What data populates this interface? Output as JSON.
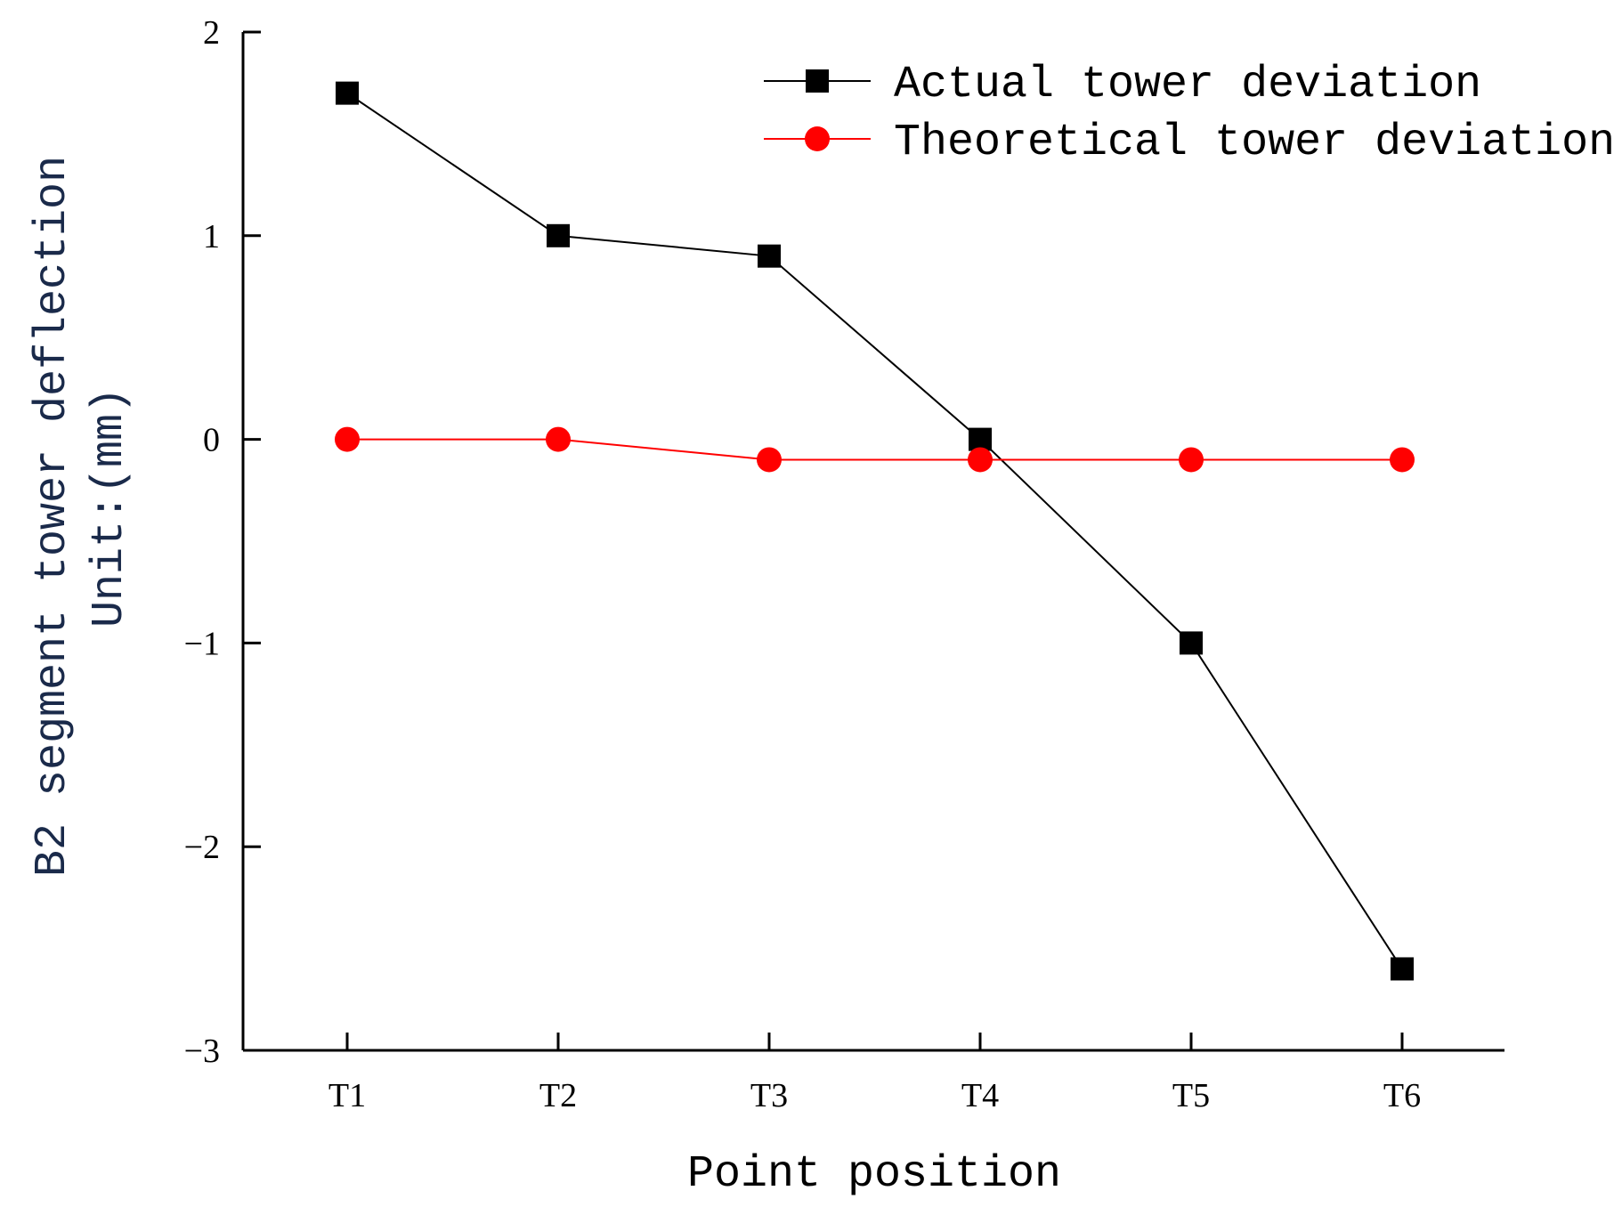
{
  "chart_data": {
    "type": "line",
    "categories": [
      "T1",
      "T2",
      "T3",
      "T4",
      "T5",
      "T6"
    ],
    "series": [
      {
        "name": "Actual tower deviation",
        "values": [
          1.7,
          1.0,
          0.9,
          0.0,
          -1.0,
          -2.6
        ],
        "color": "#000000",
        "marker": "square"
      },
      {
        "name": "Theoretical tower deviation",
        "values": [
          0.0,
          0.0,
          -0.1,
          -0.1,
          -0.1,
          -0.1
        ],
        "color": "#ff0000",
        "marker": "circle"
      }
    ],
    "xlabel": "Point position",
    "ylabel_line1": "B2 segment tower deflection",
    "ylabel_line2": "Unit:(mm)",
    "ylim": [
      -3,
      2
    ],
    "yticks": [
      2,
      1,
      0,
      -1,
      -2,
      -3
    ],
    "ytick_labels": [
      "2",
      "1",
      "0",
      "−1",
      "−2",
      "−3"
    ],
    "grid": false,
    "legend_position": "top-right"
  }
}
